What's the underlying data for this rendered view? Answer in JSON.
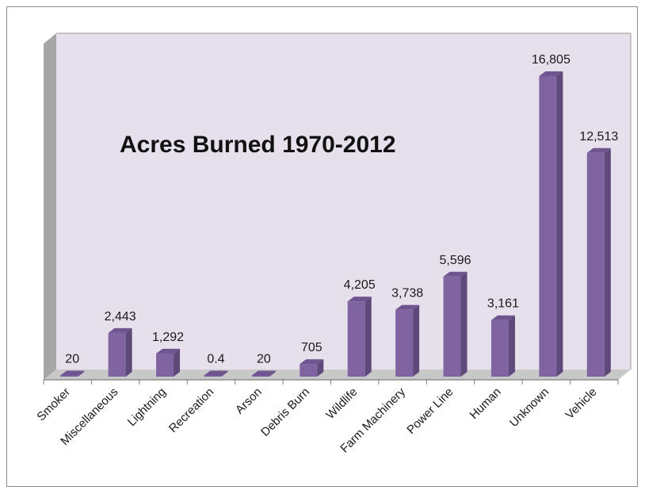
{
  "chart_data": {
    "type": "bar",
    "title": "Acres Burned 1970-2012",
    "categories": [
      "Smoker",
      "Miscellaneous",
      "Lightning",
      "Recreation",
      "Arson",
      "Debris Burn",
      "Wildlife",
      "Farm Machinery",
      "Power Line",
      "Human",
      "Unknown",
      "Vehicle"
    ],
    "values": [
      20,
      2443,
      1292,
      0.4,
      20,
      705,
      4205,
      3738,
      5596,
      3161,
      16805,
      12513
    ],
    "value_labels": [
      "20",
      "2,443",
      "1,292",
      "0.4",
      "20",
      "705",
      "4,205",
      "3,738",
      "5,596",
      "3,161",
      "16,805",
      "12,513"
    ],
    "ylim": [
      0,
      18000
    ],
    "grid": false,
    "legend": "none",
    "colors": {
      "bar_front": "#8064a2",
      "bar_side": "#5f497a",
      "bar_top": "#6f5590",
      "plot_back": "#e5e0ec",
      "floor": "#c8c8c8",
      "left_wall": "#a6a6a6"
    }
  }
}
